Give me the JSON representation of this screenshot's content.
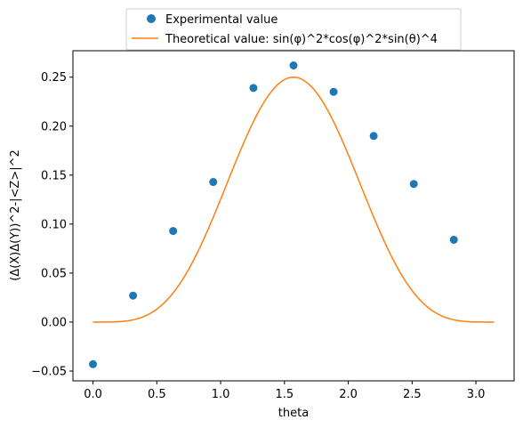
{
  "chart_data": {
    "type": "scatter",
    "title": "",
    "xlabel": "theta",
    "ylabel": "(Δ(X)Δ(Y))^2-|<Z>|^2",
    "xlim": [
      -0.157,
      3.299
    ],
    "ylim": [
      -0.06,
      0.277
    ],
    "xticks": [
      0.0,
      0.5,
      1.0,
      1.5,
      2.0,
      2.5,
      3.0
    ],
    "xtick_labels": [
      "0.0",
      "0.5",
      "1.0",
      "1.5",
      "2.0",
      "2.5",
      "3.0"
    ],
    "yticks": [
      -0.05,
      0.0,
      0.05,
      0.1,
      0.15,
      0.2,
      0.25
    ],
    "ytick_labels": [
      "−0.05",
      "0.00",
      "0.05",
      "0.10",
      "0.15",
      "0.20",
      "0.25"
    ],
    "grid": false,
    "legend_position": "top-center",
    "series": [
      {
        "name": "Experimental value",
        "kind": "markers",
        "color": "#1f77b4",
        "x": [
          0.0,
          0.314,
          0.628,
          0.942,
          1.257,
          1.571,
          1.885,
          2.199,
          2.513,
          2.827
        ],
        "y": [
          -0.043,
          0.027,
          0.093,
          0.143,
          0.239,
          0.262,
          0.235,
          0.19,
          0.141,
          0.084
        ]
      },
      {
        "name": "Theoretical value: sin(φ)^2*cos(φ)^2*sin(θ)^4",
        "kind": "line",
        "color": "#ff7f0e",
        "function": "0.25*sin(theta)^4",
        "x_range": [
          0.0,
          3.1416
        ]
      }
    ]
  }
}
